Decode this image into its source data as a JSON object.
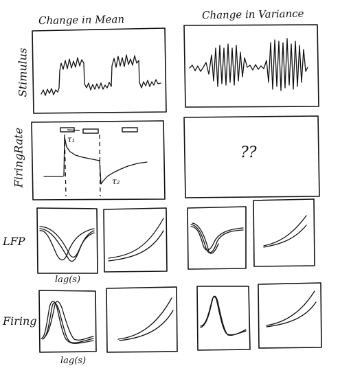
{
  "headers": {
    "mean": "Change in Mean",
    "variance": "Change in Variance"
  },
  "row_labels": {
    "stimulus": "Stimulus",
    "firing_rate": "FiringRate",
    "lfp": "LFP",
    "firing": "Firing"
  },
  "annotations": {
    "tau1": "τ₁",
    "tau2": "τ₂",
    "unknown": "??"
  },
  "axis_labels": {
    "lfp_lag": "lag(s)",
    "firing_lag": "lag(s)"
  }
}
